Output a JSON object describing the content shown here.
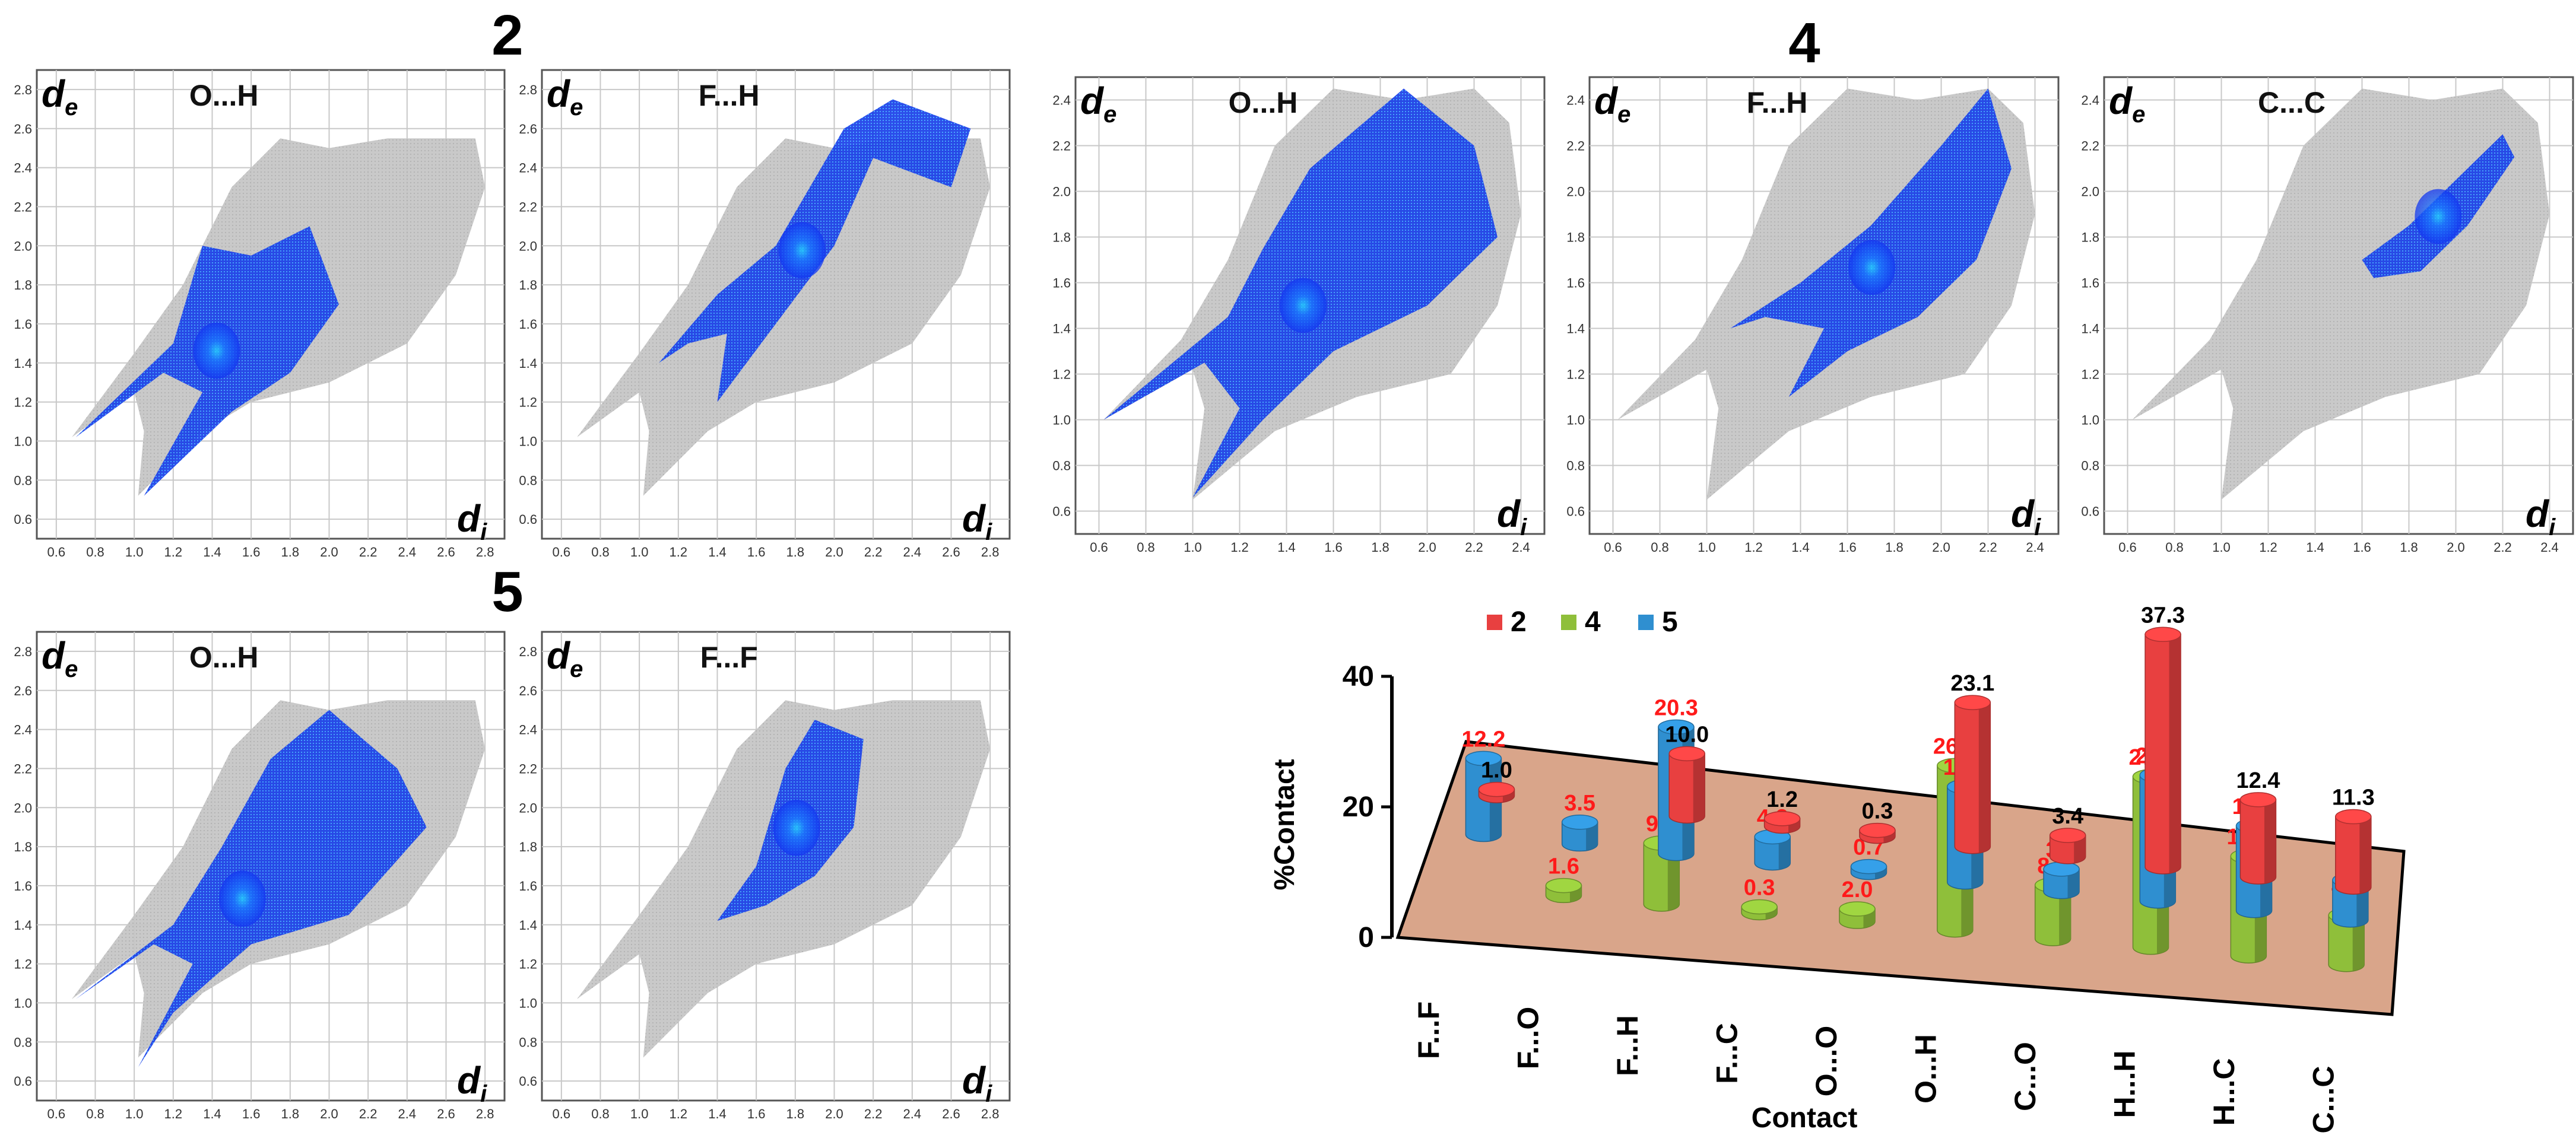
{
  "fingerprint_panels": {
    "group_labels": [
      "2",
      "4",
      "5"
    ],
    "axis_symbols": {
      "de": "d",
      "de_sub": "e",
      "di": "d",
      "di_sub": "i"
    },
    "ticks_28": [
      "0.6",
      "0.8",
      "1.0",
      "1.2",
      "1.4",
      "1.6",
      "1.8",
      "2.0",
      "2.2",
      "2.4",
      "2.6",
      "2.8"
    ],
    "ticks_24": [
      "0.6",
      "0.8",
      "1.0",
      "1.2",
      "1.4",
      "1.6",
      "1.8",
      "2.0",
      "2.2",
      "2.4"
    ],
    "panels": [
      {
        "group": "2",
        "title": "O...H"
      },
      {
        "group": "2",
        "title": "F...H"
      },
      {
        "group": "4",
        "title": "O...H"
      },
      {
        "group": "4",
        "title": "F...H"
      },
      {
        "group": "4",
        "title": "C...C"
      },
      {
        "group": "5",
        "title": "O...H"
      },
      {
        "group": "5",
        "title": "F...F"
      }
    ]
  },
  "chart_data": {
    "type": "bar",
    "style": "3d-cylinder",
    "xlabel": "Contact",
    "ylabel": "%Contact",
    "ylim": [
      0,
      40
    ],
    "yticks": [
      "0",
      "20",
      "40"
    ],
    "categories": [
      "F...F",
      "F...O",
      "F...H",
      "F...C",
      "O...O",
      "O...H",
      "C...O",
      "H...H",
      "H...C",
      "C...C"
    ],
    "series": [
      {
        "name": "2",
        "color": "#e84040",
        "label_color": "#000000",
        "values": [
          1.0,
          null,
          10.0,
          1.2,
          0.3,
          23.1,
          3.4,
          37.3,
          12.4,
          11.3
        ]
      },
      {
        "name": "4",
        "color": "#8fbf3a",
        "label_color": "#ff1a1a",
        "values": [
          null,
          1.6,
          9.8,
          0.3,
          2.0,
          26.4,
          8.6,
          27.4,
          16.0,
          7.9
        ]
      },
      {
        "name": "5",
        "color": "#2f8fd0",
        "label_color": "#ff1a1a",
        "values": [
          12.2,
          3.5,
          20.3,
          4.2,
          0.7,
          15.3,
          3.6,
          20.2,
          13.6,
          6.4
        ]
      }
    ],
    "legend_position": "top",
    "floor_color": "#d9a58a"
  }
}
